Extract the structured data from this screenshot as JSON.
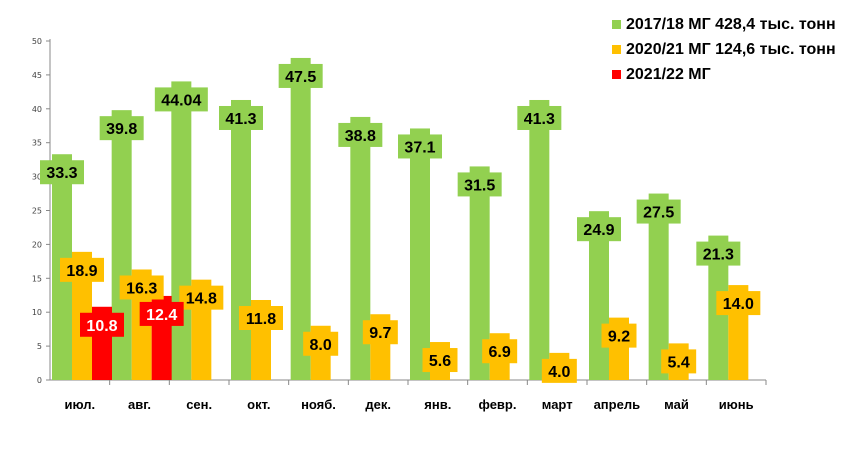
{
  "chart_data": {
    "type": "bar",
    "categories": [
      "июл.",
      "авг.",
      "сен.",
      "окт.",
      "нояб.",
      "дек.",
      "янв.",
      "февр.",
      "март",
      "апрель",
      "май",
      "июнь"
    ],
    "series": [
      {
        "name": "2017/18 МГ 428,4 тыс. тонн",
        "color": "#92D050",
        "values": [
          33.3,
          39.8,
          44.04,
          41.3,
          47.5,
          38.8,
          37.1,
          31.5,
          41.3,
          24.9,
          27.5,
          21.3
        ],
        "labels": [
          "33.3",
          "39.8",
          "44.04",
          "41.3",
          "47.5",
          "38.8",
          "37.1",
          "31.5",
          "41.3",
          "24.9",
          "27.5",
          "21.3"
        ],
        "label_color": "#000000"
      },
      {
        "name": "2020/21 МГ 124,6 тыс. тонн",
        "color": "#FFC000",
        "values": [
          18.9,
          16.3,
          14.8,
          11.8,
          8.0,
          9.7,
          5.6,
          6.9,
          4.0,
          9.2,
          5.4,
          14.0
        ],
        "labels": [
          "18.9",
          "16.3",
          "14.8",
          "11.8",
          "8.0",
          "9.7",
          "5.6",
          "6.9",
          "4.0",
          "9.2",
          "5.4",
          "14.0"
        ],
        "label_color": "#000000"
      },
      {
        "name": "2021/22 МГ",
        "color": "#FF0000",
        "values": [
          10.8,
          12.4,
          null,
          null,
          null,
          null,
          null,
          null,
          null,
          null,
          null,
          null
        ],
        "labels": [
          "10.8",
          "12.4"
        ],
        "label_color": "#FFFFFF"
      }
    ],
    "ylim": [
      0,
      50
    ],
    "yticks": [
      "0",
      "5",
      "10",
      "15",
      "20",
      "25",
      "30",
      "35",
      "40",
      "45",
      "50"
    ],
    "legend": "top-right",
    "grid": false
  }
}
